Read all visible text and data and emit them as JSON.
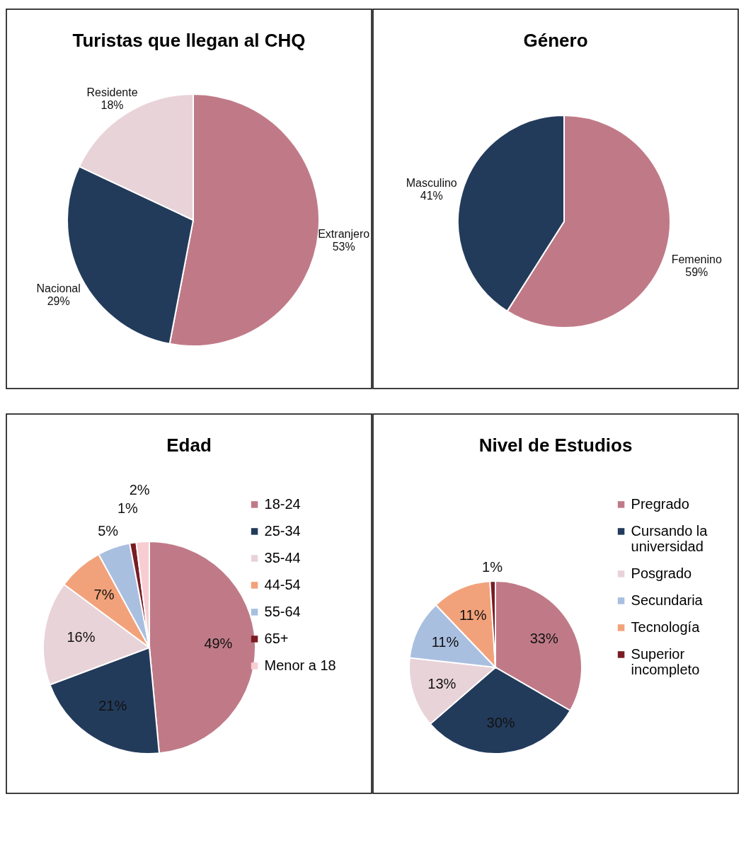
{
  "chart_data": [
    {
      "type": "pie",
      "title": "Turistas que llegan al CHQ",
      "categories": [
        "Extranjero",
        "Nacional",
        "Residente"
      ],
      "values": [
        53,
        29,
        18
      ],
      "colors": [
        "#c07a87",
        "#233b5b",
        "#e8d3d9"
      ],
      "value_labels": [
        "53%",
        "29%",
        "18%"
      ],
      "legend": false
    },
    {
      "type": "pie",
      "title": "Género",
      "categories": [
        "Femenino",
        "Masculino"
      ],
      "values": [
        59,
        41
      ],
      "colors": [
        "#c07a87",
        "#233b5b"
      ],
      "value_labels": [
        "59%",
        "41%"
      ],
      "legend": false
    },
    {
      "type": "pie",
      "title": "Edad",
      "categories": [
        "18-24",
        "25-34",
        "35-44",
        "44-54",
        "55-64",
        "65+",
        "Menor a 18"
      ],
      "values": [
        49,
        21,
        16,
        7,
        5,
        1,
        2
      ],
      "colors": [
        "#c07a87",
        "#233b5b",
        "#e8d3d9",
        "#f2a27a",
        "#a9bfe0",
        "#7a1c24",
        "#f7cdd2"
      ],
      "value_labels": [
        "49%",
        "21%",
        "16%",
        "7%",
        "5%",
        "1%",
        "2%"
      ],
      "legend": "right"
    },
    {
      "type": "pie",
      "title": "Nivel de Estudios",
      "categories": [
        "Pregrado",
        "Cursando la universidad",
        "Posgrado",
        "Secundaria",
        "Tecnología",
        "Superior incompleto"
      ],
      "values": [
        33,
        30,
        13,
        11,
        11,
        1
      ],
      "colors": [
        "#c07a87",
        "#233b5b",
        "#e8d3d9",
        "#a9bfe0",
        "#f2a27a",
        "#7a1c24"
      ],
      "value_labels": [
        "33%",
        "30%",
        "13%",
        "11%",
        "11%",
        "1%"
      ],
      "legend": "right"
    }
  ]
}
